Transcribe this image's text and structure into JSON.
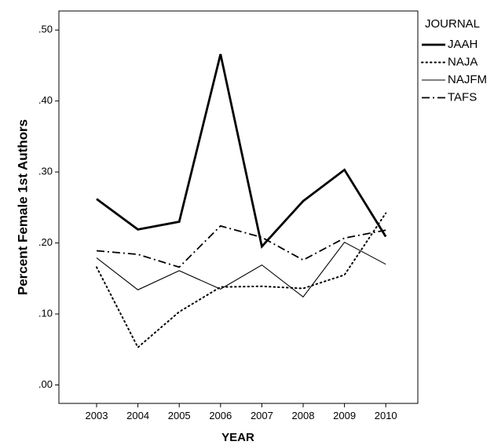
{
  "chart_data": {
    "type": "line",
    "title": "",
    "xlabel": "YEAR",
    "ylabel": "Percent Female 1st Authors",
    "x": [
      "2003",
      "2004",
      "2005",
      "2006",
      "2007",
      "2008",
      "2009",
      "2010"
    ],
    "yticks": [
      ".00",
      ".10",
      ".20",
      ".30",
      ".40",
      ".50"
    ],
    "ylim": [
      -0.025,
      0.53
    ],
    "grid": false,
    "legend": {
      "title": "JOURNAL",
      "position": "right"
    },
    "series": [
      {
        "name": "JAAH",
        "style": "solid-thick",
        "values": [
          0.262,
          0.219,
          0.23,
          0.466,
          0.195,
          0.259,
          0.303,
          0.209
        ]
      },
      {
        "name": "NAJA",
        "style": "dotted",
        "values": [
          0.166,
          0.053,
          0.103,
          0.138,
          0.139,
          0.136,
          0.155,
          0.242
        ]
      },
      {
        "name": "NAJFM",
        "style": "solid-thin",
        "values": [
          0.179,
          0.134,
          0.161,
          0.135,
          0.169,
          0.124,
          0.201,
          0.17
        ]
      },
      {
        "name": "TAFS",
        "style": "dash-dot",
        "values": [
          0.189,
          0.184,
          0.166,
          0.224,
          0.208,
          0.176,
          0.207,
          0.218
        ]
      }
    ]
  }
}
